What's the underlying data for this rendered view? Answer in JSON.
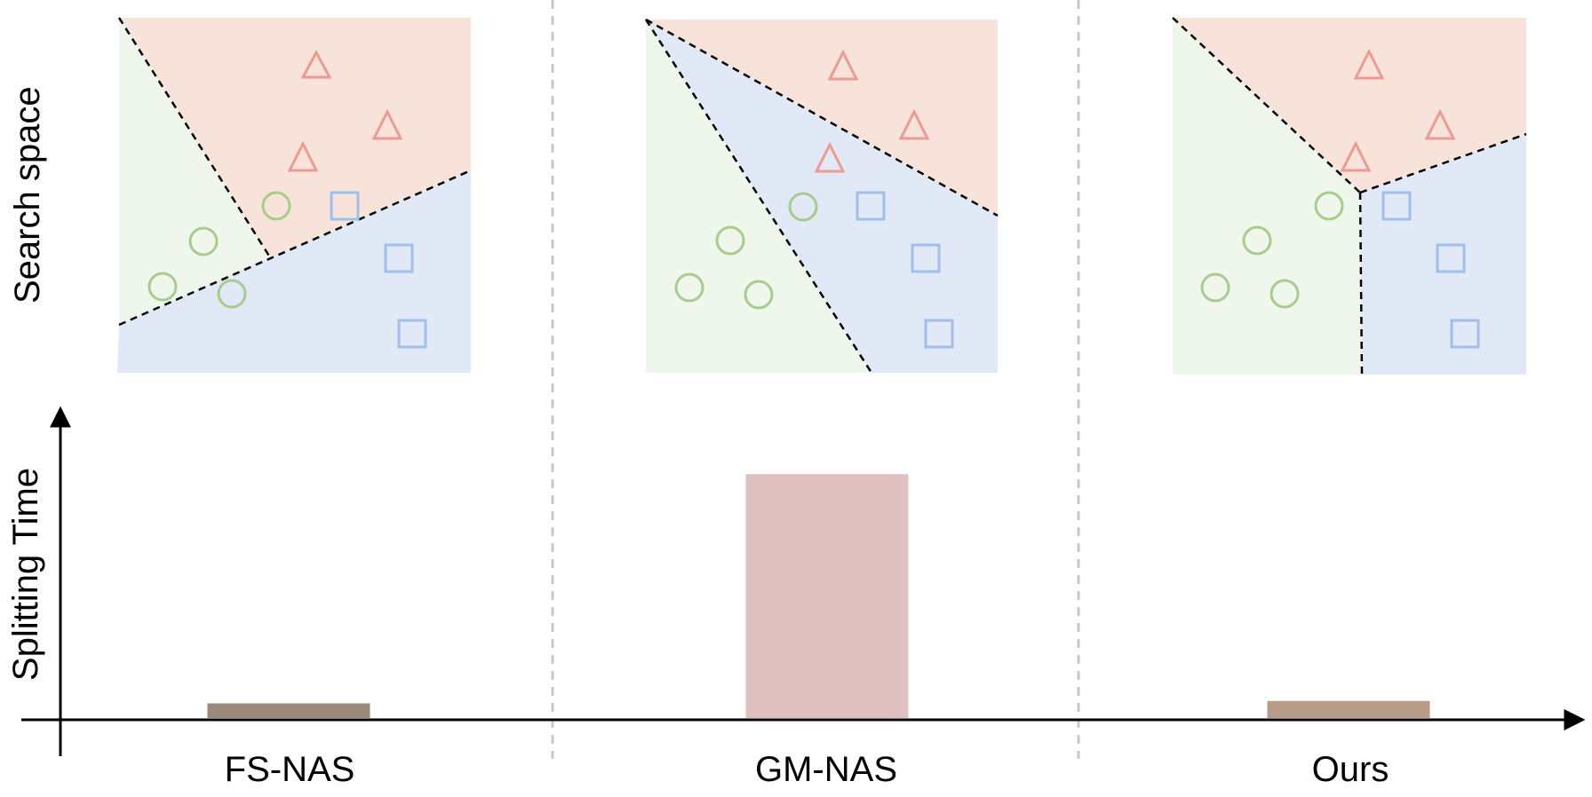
{
  "labels": {
    "top_row": "Search space",
    "bottom_row": "Splitting Time"
  },
  "colors": {
    "region_red": "#f7e3d9",
    "region_green": "#eff7ec",
    "region_blue": "#e2e9f6",
    "triangle": "#eb9b92",
    "circle": "#a7cc8c",
    "square": "#9fc0ec",
    "divider": "#c8c8c8"
  },
  "panels": [
    {
      "method": "FS-NAS",
      "bar_color": "#998a7a"
    },
    {
      "method": "GM-NAS",
      "bar_color": "#e0c0c0"
    },
    {
      "method": "Ours",
      "bar_color": "#b89b88"
    }
  ],
  "chart_data": {
    "type": "bar",
    "categories": [
      "FS-NAS",
      "GM-NAS",
      "Ours"
    ],
    "values": [
      0.06,
      1.0,
      0.07
    ],
    "ylabel": "Splitting Time",
    "xlabel": "",
    "ylim": [
      0,
      1.15
    ],
    "grid": false
  }
}
